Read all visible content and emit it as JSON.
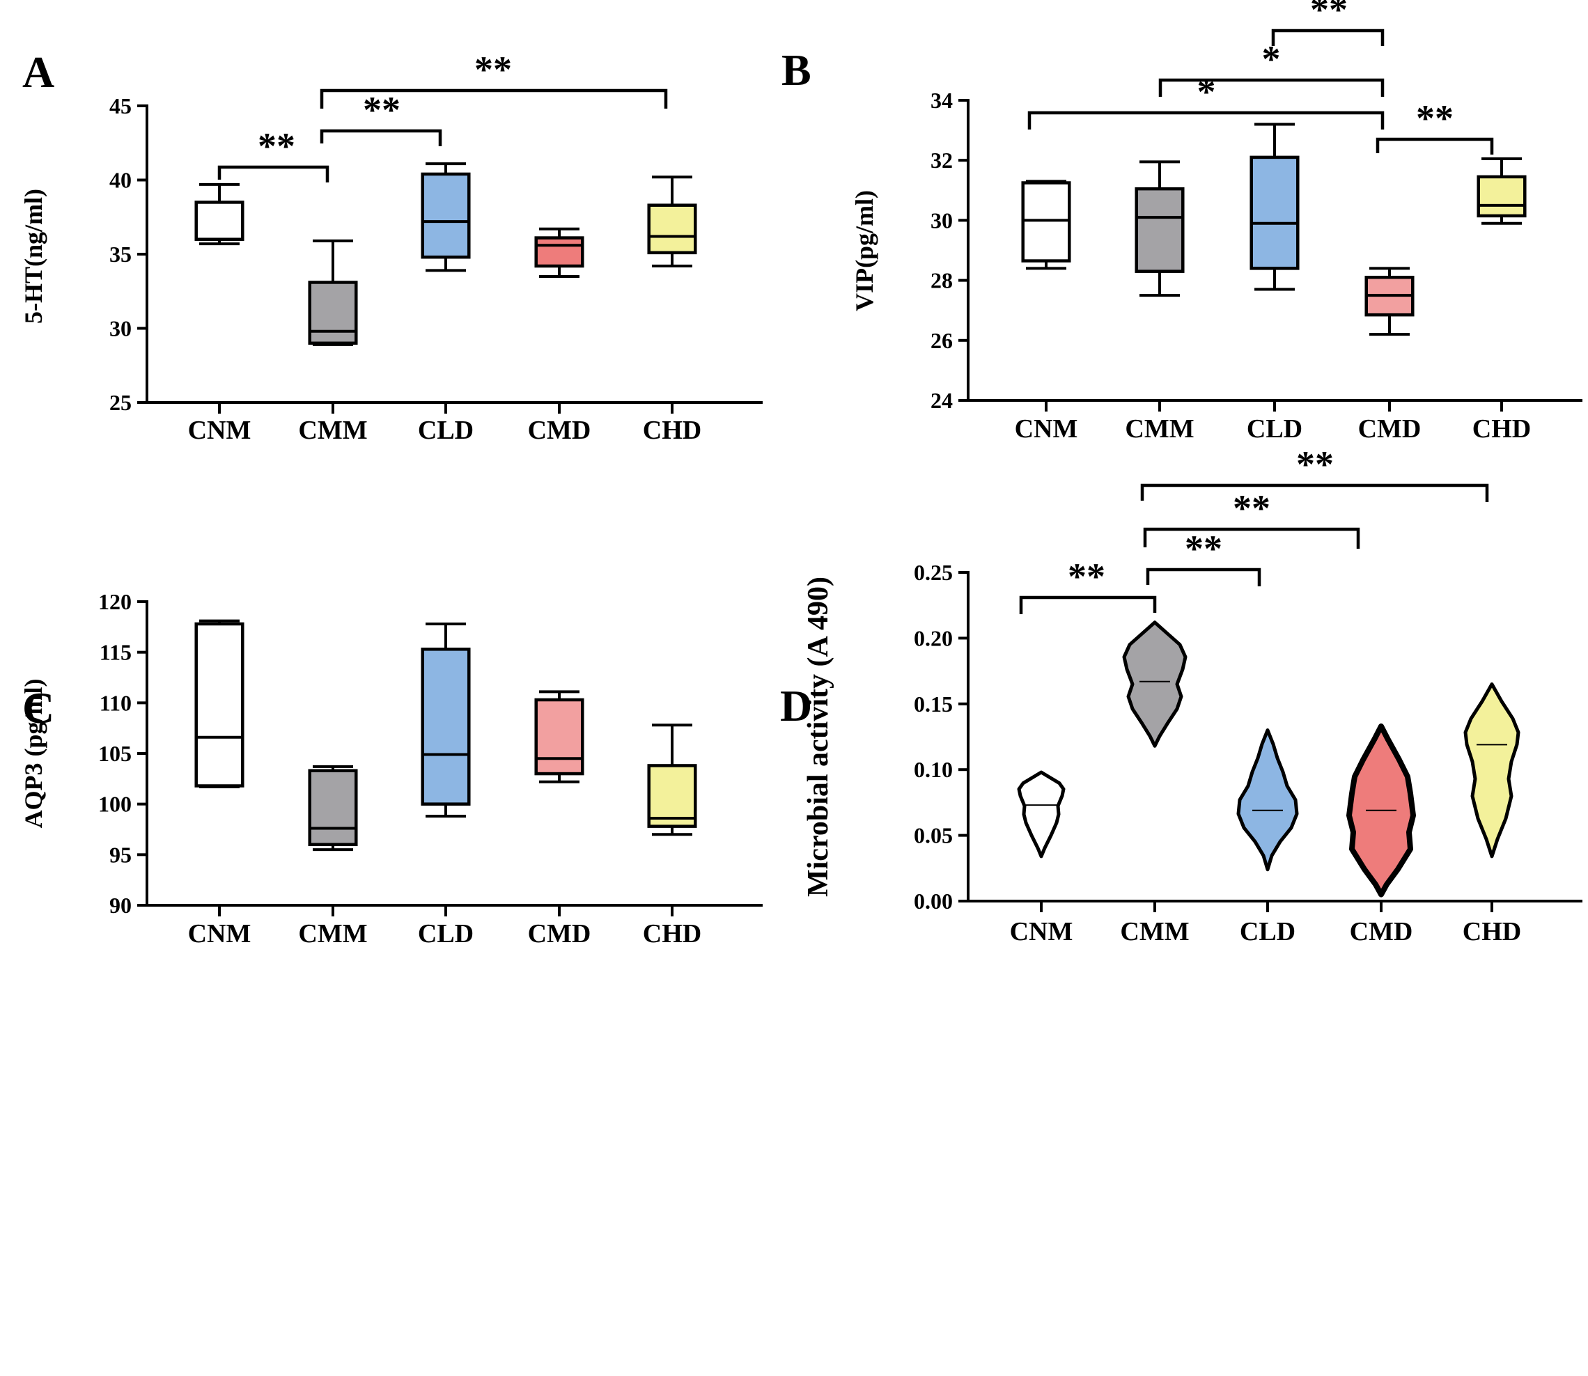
{
  "chart_data": [
    {
      "panel": "A",
      "type": "box",
      "ylabel": "5-HT(ng/ml)",
      "ylim": [
        25,
        45
      ],
      "yticks": [
        25,
        30,
        35,
        40,
        45
      ],
      "categories": [
        "CNM",
        "CMM",
        "CLD",
        "CMD",
        "CHD"
      ],
      "colors": [
        "#ffffff",
        "#a4a3a6",
        "#8db6e3",
        "#ee7c7b",
        "#f3f19b"
      ],
      "boxes": [
        {
          "min": 35.7,
          "q1": 36.0,
          "median": 36.0,
          "q3": 38.5,
          "max": 39.7
        },
        {
          "min": 28.9,
          "q1": 29.0,
          "median": 29.8,
          "q3": 33.1,
          "max": 35.9
        },
        {
          "min": 33.9,
          "q1": 34.8,
          "median": 37.2,
          "q3": 40.4,
          "max": 41.1
        },
        {
          "min": 33.5,
          "q1": 34.2,
          "median": 35.6,
          "q3": 36.1,
          "max": 36.7
        },
        {
          "min": 34.2,
          "q1": 35.1,
          "median": 36.2,
          "q3": 38.3,
          "max": 40.2
        }
      ],
      "significance": [
        {
          "from": "CNM",
          "to": "CMM",
          "label": "**"
        },
        {
          "from": "CMM",
          "to": "CLD",
          "label": "**"
        },
        {
          "from": "CMM",
          "to": "CHD",
          "label": "**"
        }
      ]
    },
    {
      "panel": "B",
      "type": "box",
      "ylabel": "VIP(pg/ml)",
      "ylim": [
        24,
        34
      ],
      "yticks": [
        24,
        26,
        28,
        30,
        32,
        34
      ],
      "categories": [
        "CNM",
        "CMM",
        "CLD",
        "CMD",
        "CHD"
      ],
      "colors": [
        "#ffffff",
        "#a4a3a6",
        "#8db6e3",
        "#f2a0a0",
        "#f3f19b"
      ],
      "boxes": [
        {
          "min": 28.4,
          "q1": 28.65,
          "median": 30.0,
          "q3": 31.25,
          "max": 31.3
        },
        {
          "min": 27.5,
          "q1": 28.3,
          "median": 30.1,
          "q3": 31.05,
          "max": 31.95
        },
        {
          "min": 27.7,
          "q1": 28.4,
          "median": 29.9,
          "q3": 32.1,
          "max": 33.2
        },
        {
          "min": 26.2,
          "q1": 26.85,
          "median": 27.5,
          "q3": 28.1,
          "max": 28.4
        },
        {
          "min": 29.9,
          "q1": 30.15,
          "median": 30.5,
          "q3": 31.45,
          "max": 32.05
        }
      ],
      "significance": [
        {
          "from": "CLD",
          "to": "CMD",
          "label": "**"
        },
        {
          "from": "CMM",
          "to": "CMD",
          "label": "*"
        },
        {
          "from": "CNM",
          "to": "CMD",
          "label": "*"
        },
        {
          "from": "CMD",
          "to": "CHD",
          "label": "**"
        }
      ]
    },
    {
      "panel": "C",
      "type": "box",
      "ylabel": "AQP3 (pg/ml)",
      "ylim": [
        90,
        120
      ],
      "yticks": [
        90,
        95,
        100,
        105,
        110,
        115,
        120
      ],
      "categories": [
        "CNM",
        "CMM",
        "CLD",
        "CMD",
        "CHD"
      ],
      "colors": [
        "#ffffff",
        "#a4a3a6",
        "#8db6e3",
        "#f2a0a0",
        "#f3f19b"
      ],
      "boxes": [
        {
          "min": 101.7,
          "q1": 101.8,
          "median": 106.6,
          "q3": 117.8,
          "max": 118.1
        },
        {
          "min": 95.5,
          "q1": 96.0,
          "median": 97.6,
          "q3": 103.3,
          "max": 103.7
        },
        {
          "min": 98.8,
          "q1": 100.0,
          "median": 104.9,
          "q3": 115.3,
          "max": 117.8
        },
        {
          "min": 102.2,
          "q1": 103.0,
          "median": 104.5,
          "q3": 110.3,
          "max": 111.1
        },
        {
          "min": 97.0,
          "q1": 97.8,
          "median": 98.6,
          "q3": 103.8,
          "max": 107.8
        }
      ],
      "significance": []
    },
    {
      "panel": "D",
      "type": "violin",
      "ylabel": "Microbial activity (A 490)",
      "ylim": [
        0,
        0.25
      ],
      "yticks": [
        "0.00",
        "0.05",
        "0.10",
        "0.15",
        "0.20",
        "0.25"
      ],
      "categories": [
        "CNM",
        "CMM",
        "CLD",
        "CMD",
        "CHD"
      ],
      "colors": [
        "#ffffff",
        "#a4a3a6",
        "#8db6e3",
        "#ee7c7b",
        "#f3f19b"
      ],
      "violins": [
        {
          "min": 0.034,
          "max": 0.098,
          "median": 0.073
        },
        {
          "min": 0.118,
          "max": 0.212,
          "median": 0.167
        },
        {
          "min": 0.024,
          "max": 0.13,
          "median": 0.069
        },
        {
          "min": 0.005,
          "max": 0.133,
          "median": 0.069
        },
        {
          "min": 0.034,
          "max": 0.165,
          "median": 0.119
        }
      ],
      "significance": [
        {
          "from": "CNM",
          "to": "CMM",
          "label": "**"
        },
        {
          "from": "CMM",
          "to": "CLD",
          "label": "**"
        },
        {
          "from": "CMM",
          "to": "CMD",
          "label": "**"
        },
        {
          "from": "CMM",
          "to": "CHD",
          "label": "**"
        }
      ]
    }
  ]
}
